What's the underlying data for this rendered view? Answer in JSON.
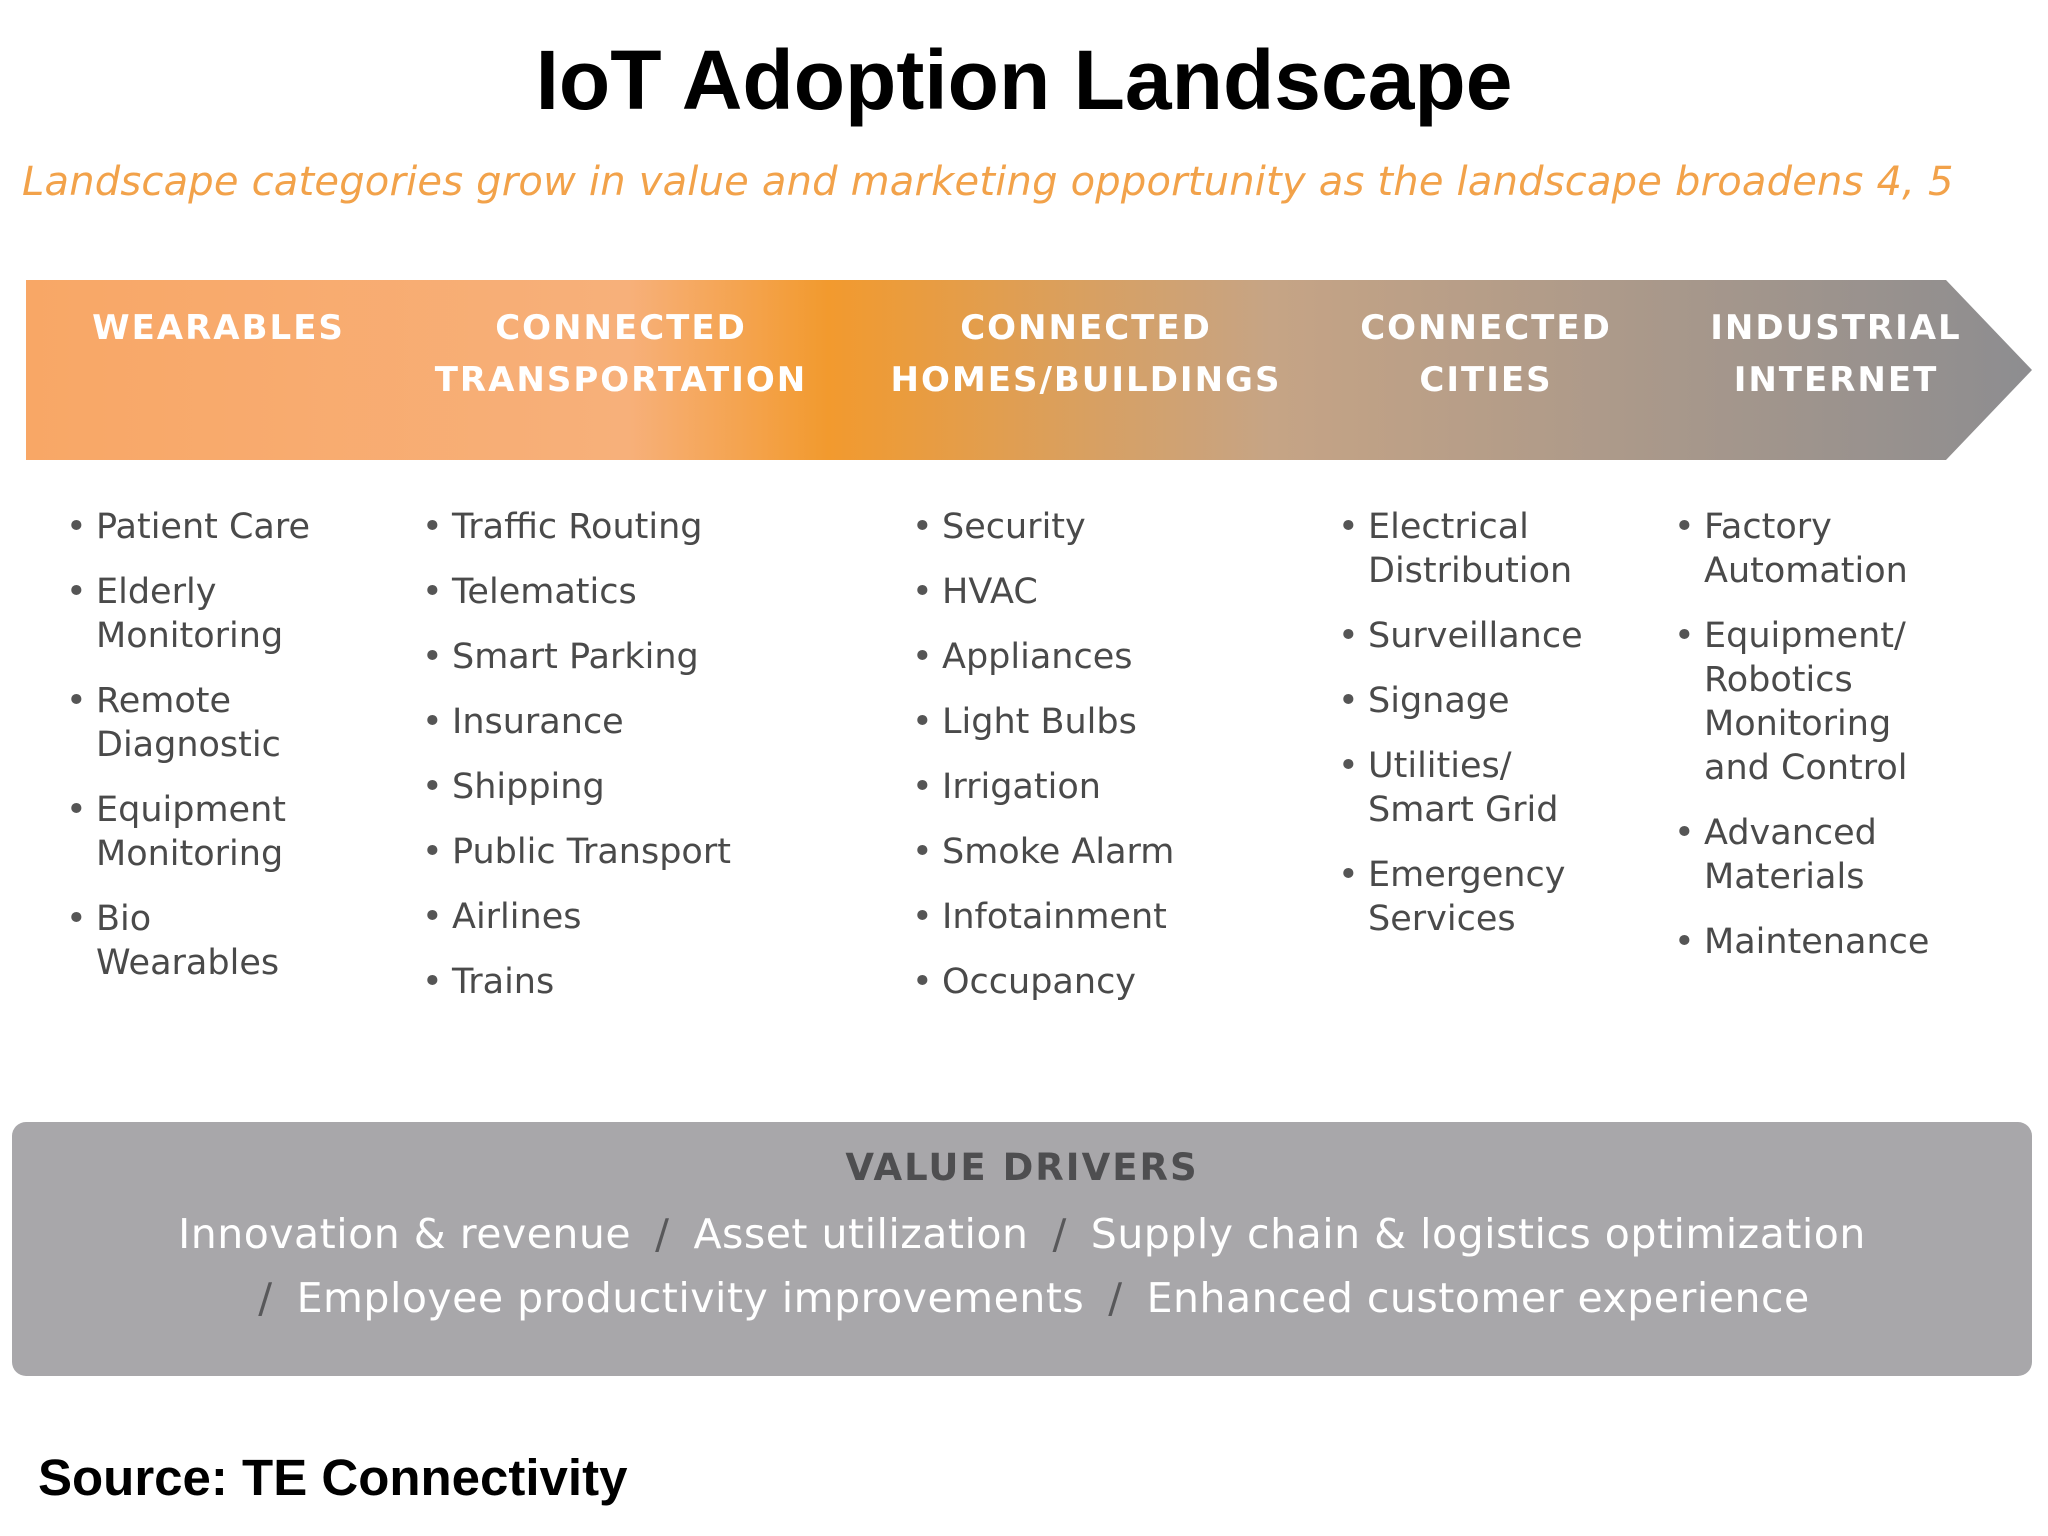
{
  "title": "IoT Adoption Landscape",
  "subtitle": "Landscape categories grow in value and marketing opportunity as the landscape broadens 4, 5",
  "colors": {
    "banner_start": "#f8a766",
    "banner_mid": "#f29a2e",
    "banner_end": "#8d8d90",
    "subtitle": "#f2a24a",
    "drivers_bg": "#a8a7aa"
  },
  "categories": [
    {
      "line1": "WEARABLES",
      "line2": "",
      "items": [
        "Patient Care",
        "Elderly\nMonitoring",
        "Remote\nDiagnostic",
        "Equipment\nMonitoring",
        "Bio\nWearables"
      ]
    },
    {
      "line1": "CONNECTED",
      "line2": "TRANSPORTATION",
      "items": [
        "Traffic Routing",
        "Telematics",
        "Smart Parking",
        "Insurance",
        "Shipping",
        "Public Transport",
        "Airlines",
        "Trains"
      ]
    },
    {
      "line1": "CONNECTED",
      "line2": "HOMES/BUILDINGS",
      "items": [
        "Security",
        "HVAC",
        "Appliances",
        "Light Bulbs",
        "Irrigation",
        "Smoke Alarm",
        "Infotainment",
        "Occupancy"
      ]
    },
    {
      "line1": "CONNECTED",
      "line2": "CITIES",
      "items": [
        "Electrical\nDistribution",
        "Surveillance",
        "Signage",
        "Utilities/\nSmart Grid",
        "Emergency\nServices"
      ]
    },
    {
      "line1": "INDUSTRIAL",
      "line2": "INTERNET",
      "items": [
        "Factory\nAutomation",
        "Equipment/\nRobotics\nMonitoring\nand Control",
        "Advanced\nMaterials",
        "Maintenance"
      ]
    }
  ],
  "value_drivers": {
    "heading": "VALUE DRIVERS",
    "separator": "/",
    "line1": [
      "Innovation & revenue",
      "Asset utilization",
      "Supply chain & logistics optimization"
    ],
    "line2": [
      "Employee productivity improvements",
      "Enhanced customer experience"
    ]
  },
  "source": "Source: TE Connectivity"
}
